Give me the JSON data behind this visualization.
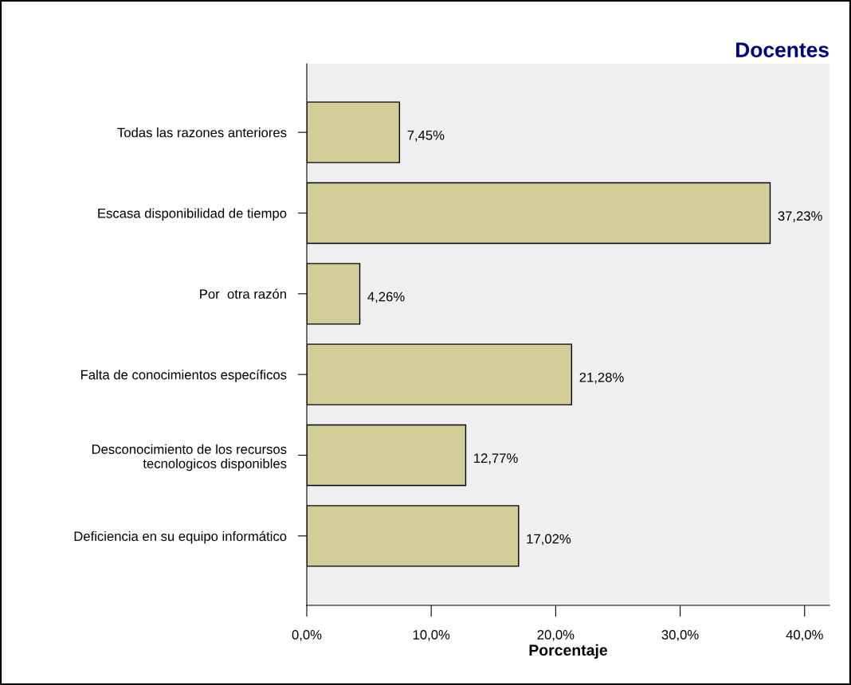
{
  "chart_data": {
    "type": "bar",
    "orientation": "horizontal",
    "title": "Docentes",
    "xlabel": "Porcentaje",
    "categories": [
      "Todas las razones anteriores",
      "Escasa disponibilidad de tiempo",
      "Por  otra razón",
      "Falta de conocimientos específicos",
      "Desconocimiento de los recursos\ntecnologicos disponibles",
      "Deficiencia en su equipo informático"
    ],
    "values": [
      7.45,
      37.23,
      4.26,
      21.28,
      12.77,
      17.02
    ],
    "value_labels": [
      "7,45%",
      "37,23%",
      "4,26%",
      "21,28%",
      "12,77%",
      "17,02%"
    ],
    "color": "#d3cd98",
    "xlim": [
      0,
      42
    ],
    "xticks": [
      {
        "value": 0,
        "label": "0,0%"
      },
      {
        "value": 10,
        "label": "10,0%"
      },
      {
        "value": 20,
        "label": "20,0%"
      },
      {
        "value": 30,
        "label": "30,0%"
      },
      {
        "value": 40,
        "label": "40,0%"
      }
    ],
    "grid": false
  }
}
